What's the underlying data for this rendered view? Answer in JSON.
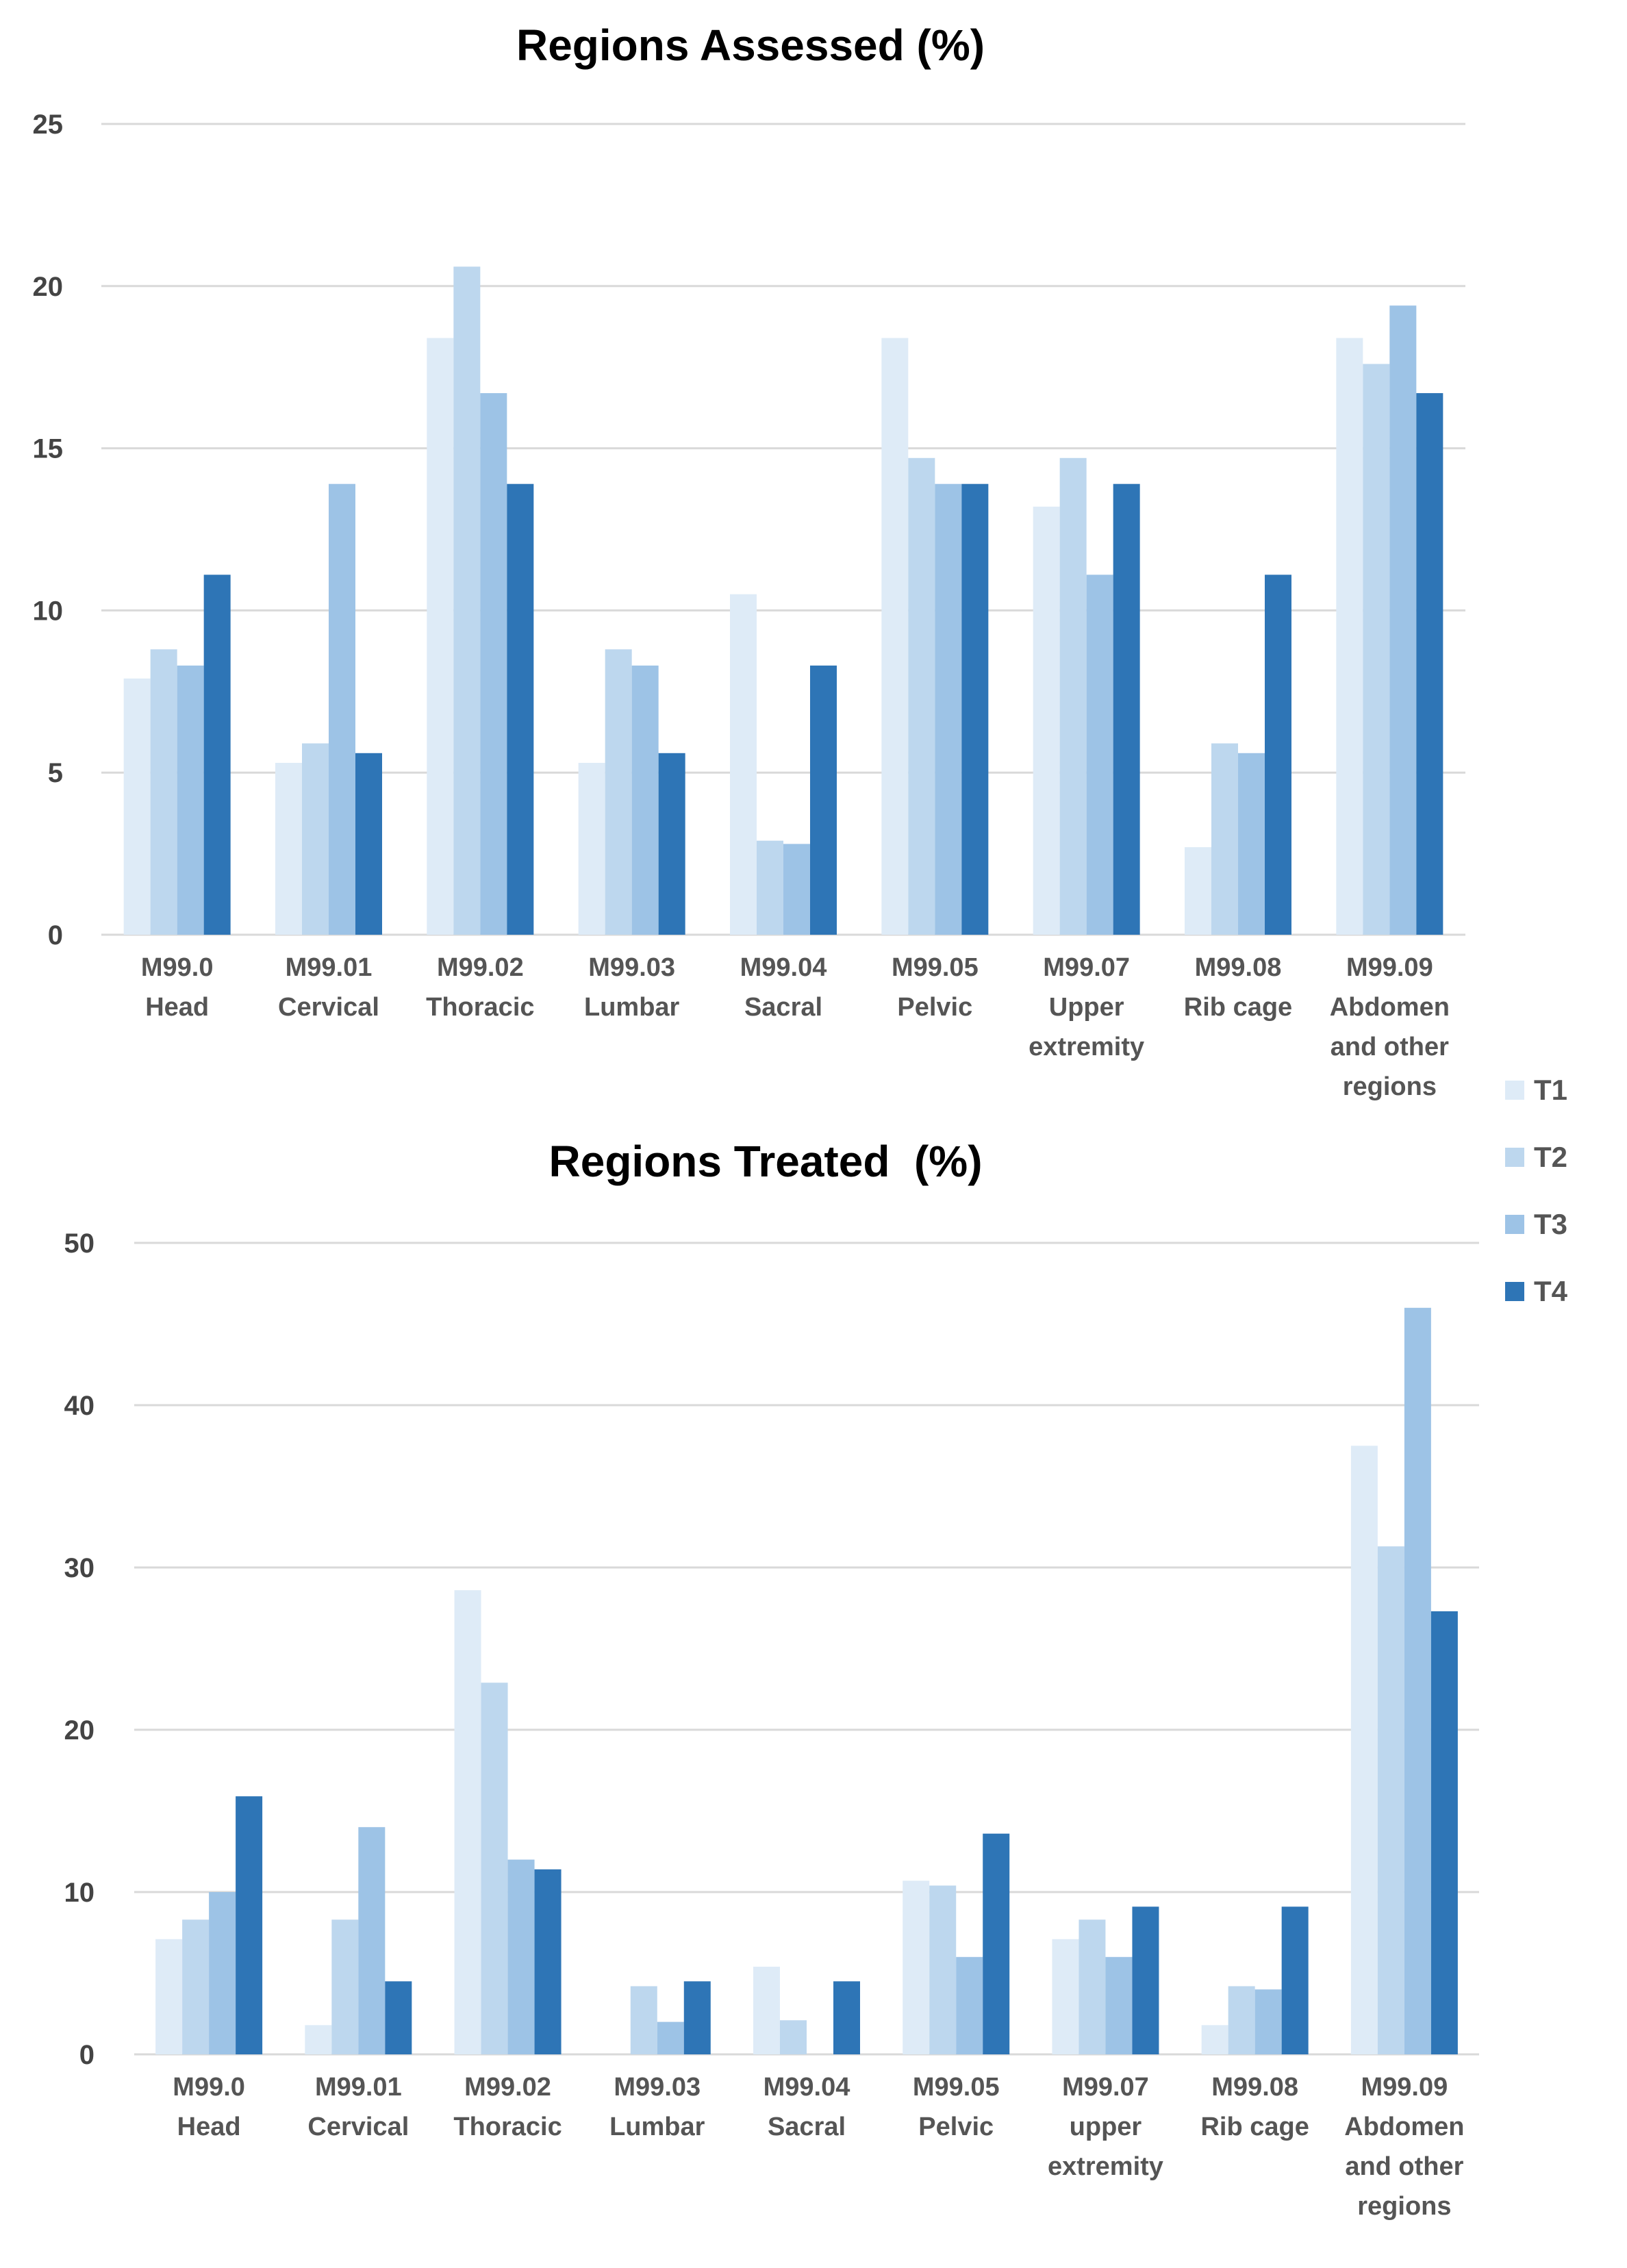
{
  "chart_data": [
    {
      "type": "bar",
      "title": "Regions Assessed (%)",
      "xlabel": "",
      "ylabel": "",
      "ylim": [
        0,
        25
      ],
      "yticks": [
        "0",
        "5",
        "10",
        "15",
        "20",
        "25"
      ],
      "categories": [
        [
          "M99.0",
          "Head"
        ],
        [
          "M99.01",
          "Cervical"
        ],
        [
          "M99.02",
          "Thoracic"
        ],
        [
          "M99.03",
          "Lumbar"
        ],
        [
          "M99.04",
          "Sacral"
        ],
        [
          "M99.05",
          "Pelvic"
        ],
        [
          "M99.07",
          "Upper",
          "extremity"
        ],
        [
          "M99.08",
          "Rib cage"
        ],
        [
          "M99.09",
          "Abdomen",
          "and other",
          "regions"
        ]
      ],
      "series": [
        {
          "name": "T1",
          "values": [
            7.9,
            5.3,
            18.4,
            5.3,
            10.5,
            18.4,
            13.2,
            2.7,
            18.4
          ]
        },
        {
          "name": "T2",
          "values": [
            8.8,
            5.9,
            20.6,
            8.8,
            2.9,
            14.7,
            14.7,
            5.9,
            17.6
          ]
        },
        {
          "name": "T3",
          "values": [
            8.3,
            13.9,
            16.7,
            8.3,
            2.8,
            13.9,
            11.1,
            5.6,
            19.4
          ]
        },
        {
          "name": "T4",
          "values": [
            11.1,
            5.6,
            13.9,
            5.6,
            8.3,
            13.9,
            13.9,
            11.1,
            16.7
          ]
        }
      ]
    },
    {
      "type": "bar",
      "title": "Regions Treated  (%)",
      "xlabel": "",
      "ylabel": "",
      "ylim": [
        0,
        50
      ],
      "yticks": [
        "0",
        "10",
        "20",
        "30",
        "40",
        "50"
      ],
      "categories": [
        [
          "M99.0",
          "Head"
        ],
        [
          "M99.01",
          "Cervical"
        ],
        [
          "M99.02",
          "Thoracic"
        ],
        [
          "M99.03",
          "Lumbar"
        ],
        [
          "M99.04",
          "Sacral"
        ],
        [
          "M99.05",
          "Pelvic"
        ],
        [
          "M99.07",
          "upper",
          "extremity"
        ],
        [
          "M99.08",
          "Rib cage"
        ],
        [
          "M99.09",
          "Abdomen",
          "and other",
          "regions"
        ]
      ],
      "series": [
        {
          "name": "T1",
          "values": [
            7.1,
            1.8,
            28.6,
            0,
            5.4,
            10.7,
            7.1,
            1.8,
            37.5
          ]
        },
        {
          "name": "T2",
          "values": [
            8.3,
            8.3,
            22.9,
            4.2,
            2.1,
            10.4,
            8.3,
            4.2,
            31.3
          ]
        },
        {
          "name": "T3",
          "values": [
            10.0,
            14.0,
            12.0,
            2.0,
            0,
            6.0,
            6.0,
            4.0,
            46.0
          ]
        },
        {
          "name": "T4",
          "values": [
            15.9,
            4.5,
            11.4,
            4.5,
            4.5,
            13.6,
            9.1,
            9.1,
            27.3
          ]
        }
      ]
    }
  ],
  "legend": {
    "position": "right",
    "items": [
      {
        "label": "T1",
        "color": "#deebf7"
      },
      {
        "label": "T2",
        "color": "#bdd7ee"
      },
      {
        "label": "T3",
        "color": "#9dc3e6"
      },
      {
        "label": "T4",
        "color": "#2e75b6"
      }
    ]
  }
}
